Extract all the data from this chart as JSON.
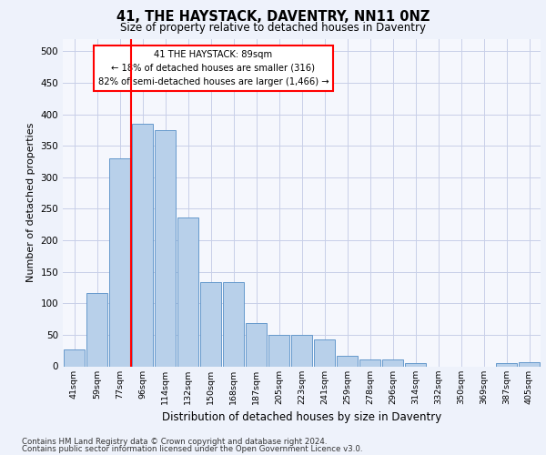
{
  "title1": "41, THE HAYSTACK, DAVENTRY, NN11 0NZ",
  "title2": "Size of property relative to detached houses in Daventry",
  "xlabel": "Distribution of detached houses by size in Daventry",
  "ylabel": "Number of detached properties",
  "categories": [
    "41sqm",
    "59sqm",
    "77sqm",
    "96sqm",
    "114sqm",
    "132sqm",
    "150sqm",
    "168sqm",
    "187sqm",
    "205sqm",
    "223sqm",
    "241sqm",
    "259sqm",
    "278sqm",
    "296sqm",
    "314sqm",
    "332sqm",
    "350sqm",
    "369sqm",
    "387sqm",
    "405sqm"
  ],
  "values": [
    27,
    116,
    330,
    385,
    375,
    236,
    133,
    133,
    68,
    50,
    50,
    43,
    16,
    11,
    11,
    5,
    0,
    0,
    0,
    5,
    6
  ],
  "bar_color": "#b8d0ea",
  "bar_edge_color": "#6699cc",
  "annotation_box_text": [
    "41 THE HAYSTACK: 89sqm",
    "← 18% of detached houses are smaller (316)",
    "82% of semi-detached houses are larger (1,466) →"
  ],
  "annotation_box_color": "white",
  "annotation_box_edge_color": "red",
  "vline_color": "red",
  "ylim": [
    0,
    520
  ],
  "yticks": [
    0,
    50,
    100,
    150,
    200,
    250,
    300,
    350,
    400,
    450,
    500
  ],
  "footer1": "Contains HM Land Registry data © Crown copyright and database right 2024.",
  "footer2": "Contains public sector information licensed under the Open Government Licence v3.0.",
  "bg_color": "#eef2fb",
  "plot_bg_color": "#f5f7fd",
  "grid_color": "#c8cfe8"
}
